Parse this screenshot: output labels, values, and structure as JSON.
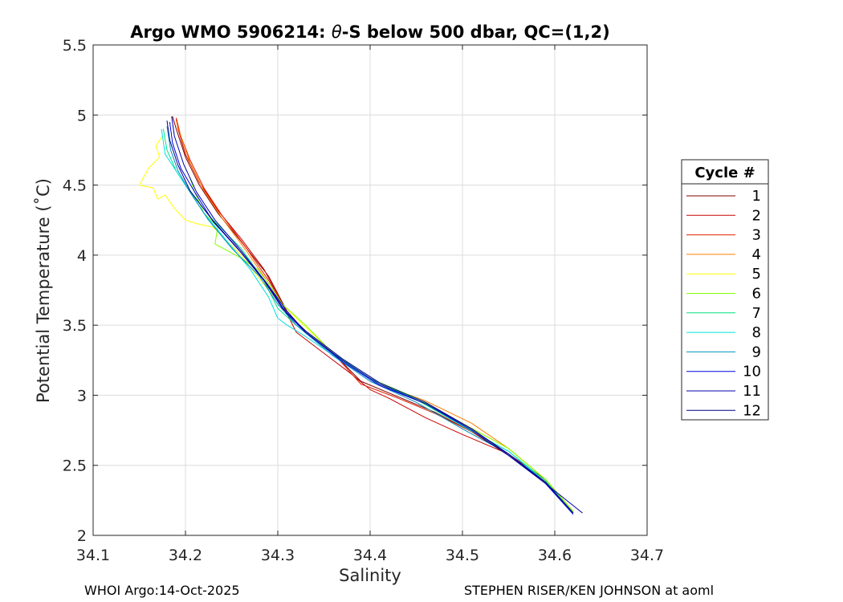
{
  "chart_data": {
    "type": "line",
    "title_prefix": "Argo WMO 5906214: ",
    "title_theta": "θ",
    "title_suffix": "-S below 500 dbar,  QC=(1,2)",
    "xlabel": "Salinity",
    "ylabel": "Potential Temperature (˚C)",
    "xlim": [
      34.1,
      34.7
    ],
    "ylim": [
      2,
      5.5
    ],
    "xticks": [
      34.1,
      34.2,
      34.3,
      34.4,
      34.5,
      34.6,
      34.7
    ],
    "xtick_labels": [
      "34.1",
      "34.2",
      "34.3",
      "34.4",
      "34.5",
      "34.6",
      "34.7"
    ],
    "yticks": [
      2,
      2.5,
      3,
      3.5,
      4,
      4.5,
      5,
      5.5
    ],
    "ytick_labels": [
      "2",
      "2.5",
      "3",
      "3.5",
      "4",
      "4.5",
      "5",
      "5.5"
    ],
    "grid": true,
    "legend_title": "Cycle #",
    "legend_position": "outside-right",
    "series": [
      {
        "name": "1",
        "color": "#800000",
        "x": [
          34.186,
          34.19,
          34.2,
          34.215,
          34.235,
          34.26,
          34.29,
          34.31,
          34.33,
          34.36,
          34.39,
          34.43,
          34.47,
          34.51,
          34.55,
          34.59,
          34.62
        ],
        "y": [
          4.99,
          4.9,
          4.7,
          4.5,
          4.3,
          4.1,
          3.85,
          3.6,
          3.45,
          3.3,
          3.1,
          2.99,
          2.88,
          2.74,
          2.57,
          2.37,
          2.16
        ]
      },
      {
        "name": "2",
        "color": "#c80000",
        "x": [
          34.19,
          34.192,
          34.2,
          34.215,
          34.235,
          34.26,
          34.285,
          34.305,
          34.32,
          34.35,
          34.38,
          34.4,
          34.42,
          34.46,
          34.5,
          34.55,
          34.59,
          34.62
        ],
        "y": [
          4.97,
          4.9,
          4.72,
          4.52,
          4.32,
          4.12,
          3.9,
          3.65,
          3.45,
          3.3,
          3.15,
          3.04,
          2.98,
          2.84,
          2.72,
          2.58,
          2.4,
          2.17
        ]
      },
      {
        "name": "3",
        "color": "#e02000",
        "x": [
          34.19,
          34.195,
          34.205,
          34.22,
          34.24,
          34.265,
          34.29,
          34.31,
          34.33,
          34.36,
          34.39,
          34.43,
          34.47,
          34.51,
          34.55,
          34.59,
          34.62
        ],
        "y": [
          4.98,
          4.85,
          4.68,
          4.48,
          4.28,
          4.06,
          3.82,
          3.6,
          3.45,
          3.3,
          3.08,
          2.98,
          2.87,
          2.74,
          2.58,
          2.38,
          2.16
        ]
      },
      {
        "name": "4",
        "color": "#ff7d00",
        "x": [
          34.19,
          34.195,
          34.205,
          34.22,
          34.24,
          34.265,
          34.29,
          34.31,
          34.33,
          34.37,
          34.41,
          34.46,
          34.51,
          34.55,
          34.59,
          34.62
        ],
        "y": [
          4.96,
          4.85,
          4.66,
          4.46,
          4.26,
          4.04,
          3.8,
          3.6,
          3.45,
          3.25,
          3.08,
          2.96,
          2.8,
          2.62,
          2.4,
          2.17
        ]
      },
      {
        "name": "5",
        "color": "#ffff00",
        "x": [
          34.175,
          34.168,
          34.172,
          34.16,
          34.15,
          34.165,
          34.17,
          34.178,
          34.183,
          34.19,
          34.2,
          34.215,
          34.23,
          34.26,
          34.29,
          34.32,
          34.36,
          34.4,
          34.45,
          34.5,
          34.55,
          34.59,
          34.62
        ],
        "y": [
          4.85,
          4.78,
          4.7,
          4.62,
          4.5,
          4.48,
          4.4,
          4.43,
          4.38,
          4.32,
          4.25,
          4.22,
          4.2,
          4.0,
          3.75,
          3.55,
          3.3,
          3.12,
          2.98,
          2.8,
          2.62,
          2.4,
          2.17
        ]
      },
      {
        "name": "6",
        "color": "#80ff00",
        "x": [
          34.205,
          34.21,
          34.22,
          34.235,
          34.232,
          34.26,
          34.278,
          34.29,
          34.305,
          34.33,
          34.36,
          34.4,
          34.45,
          34.5,
          34.55,
          34.59,
          34.62
        ],
        "y": [
          4.55,
          4.45,
          4.3,
          4.2,
          4.08,
          3.98,
          3.9,
          3.8,
          3.65,
          3.5,
          3.3,
          3.12,
          2.98,
          2.8,
          2.62,
          2.4,
          2.17
        ]
      },
      {
        "name": "7",
        "color": "#00e080",
        "x": [
          34.176,
          34.18,
          34.19,
          34.205,
          34.23,
          34.26,
          34.285,
          34.3,
          34.32,
          34.36,
          34.4,
          34.45,
          34.5,
          34.55,
          34.59,
          34.62
        ],
        "y": [
          4.9,
          4.75,
          4.6,
          4.45,
          4.25,
          4.05,
          3.82,
          3.62,
          3.5,
          3.3,
          3.12,
          2.97,
          2.78,
          2.6,
          2.39,
          2.16
        ]
      },
      {
        "name": "8",
        "color": "#00e0e0",
        "x": [
          34.174,
          34.178,
          34.188,
          34.2,
          34.22,
          34.245,
          34.27,
          34.29,
          34.3,
          34.31,
          34.33,
          34.37,
          34.41,
          34.46,
          34.5,
          34.55,
          34.59,
          34.62
        ],
        "y": [
          4.9,
          4.72,
          4.62,
          4.5,
          4.3,
          4.1,
          3.9,
          3.7,
          3.55,
          3.5,
          3.42,
          3.24,
          3.08,
          2.94,
          2.78,
          2.6,
          2.38,
          2.16
        ]
      },
      {
        "name": "9",
        "color": "#0090c0",
        "x": [
          34.18,
          34.184,
          34.192,
          34.205,
          34.225,
          34.25,
          34.28,
          34.3,
          34.32,
          34.36,
          34.4,
          34.45,
          34.5,
          34.55,
          34.59,
          34.62
        ],
        "y": [
          4.92,
          4.75,
          4.6,
          4.45,
          4.25,
          4.05,
          3.85,
          3.65,
          3.5,
          3.28,
          3.1,
          2.95,
          2.76,
          2.58,
          2.38,
          2.16
        ]
      },
      {
        "name": "10",
        "color": "#0000e0",
        "x": [
          34.183,
          34.186,
          34.195,
          34.21,
          34.23,
          34.26,
          34.29,
          34.31,
          34.33,
          34.37,
          34.41,
          34.46,
          34.51,
          34.55,
          34.59,
          34.62
        ],
        "y": [
          4.95,
          4.8,
          4.62,
          4.45,
          4.24,
          4.02,
          3.78,
          3.58,
          3.45,
          3.24,
          3.07,
          2.94,
          2.76,
          2.58,
          2.37,
          2.15
        ]
      },
      {
        "name": "11",
        "color": "#0000a8",
        "x": [
          34.185,
          34.188,
          34.198,
          34.212,
          34.232,
          34.258,
          34.288,
          34.31,
          34.33,
          34.37,
          34.41,
          34.46,
          34.51,
          34.55,
          34.59,
          34.63
        ],
        "y": [
          4.99,
          4.85,
          4.65,
          4.45,
          4.25,
          4.05,
          3.8,
          3.6,
          3.45,
          3.25,
          3.08,
          2.94,
          2.75,
          2.57,
          2.37,
          2.16
        ]
      },
      {
        "name": "12",
        "color": "#000080",
        "x": [
          34.18,
          34.183,
          34.192,
          34.205,
          34.228,
          34.255,
          34.285,
          34.305,
          34.33,
          34.37,
          34.41,
          34.46,
          34.51,
          34.55,
          34.59,
          34.62
        ],
        "y": [
          4.96,
          4.82,
          4.64,
          4.46,
          4.26,
          4.06,
          3.82,
          3.62,
          3.46,
          3.26,
          3.09,
          2.95,
          2.76,
          2.58,
          2.38,
          2.16
        ]
      }
    ]
  },
  "footer": {
    "left": "WHOI Argo:14-Oct-2025",
    "right": "STEPHEN RISER/KEN JOHNSON at aoml"
  }
}
